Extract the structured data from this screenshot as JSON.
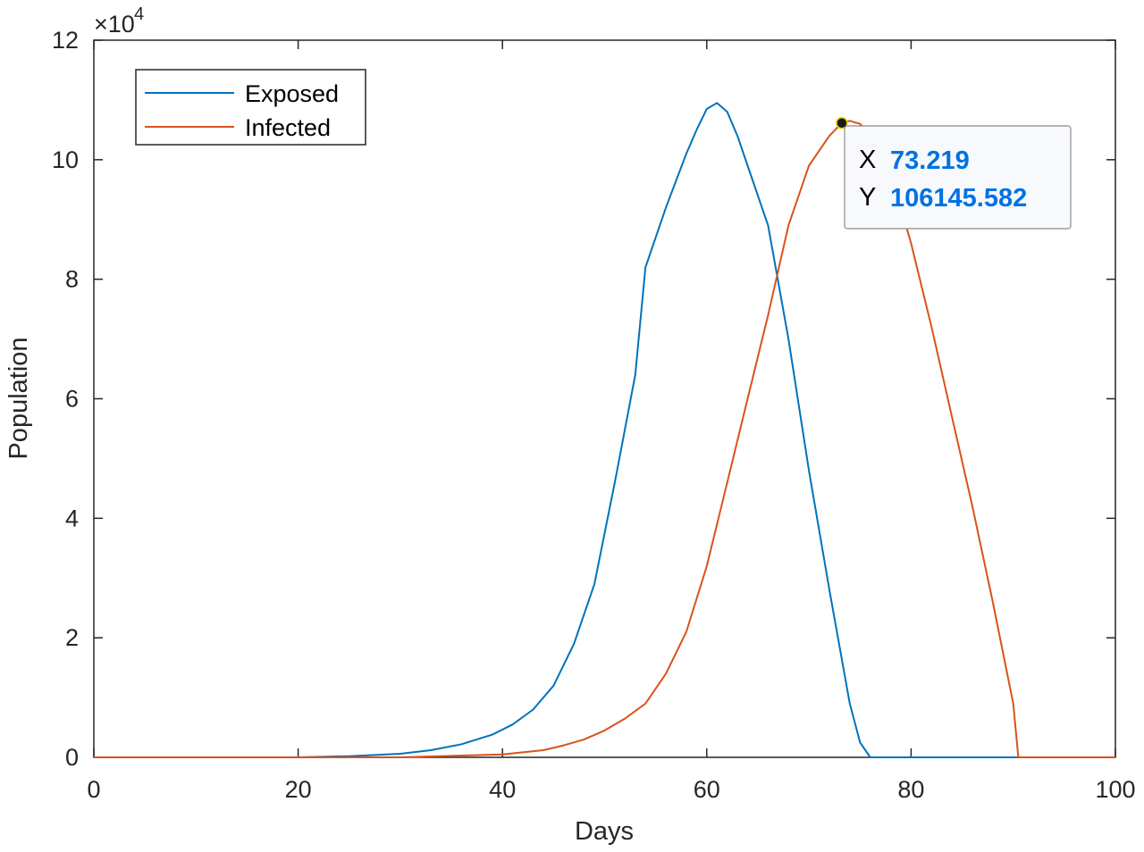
{
  "chart_data": {
    "type": "line",
    "xlabel": "Days",
    "ylabel": "Population",
    "y_exponent_label": "×10",
    "y_exponent_power": "4",
    "xlim": [
      0,
      100
    ],
    "ylim": [
      0,
      120000
    ],
    "x_ticks": [
      0,
      20,
      40,
      60,
      80,
      100
    ],
    "x_tick_labels": [
      "0",
      "20",
      "40",
      "60",
      "80",
      "100"
    ],
    "y_ticks": [
      0,
      20000,
      40000,
      60000,
      80000,
      100000,
      120000
    ],
    "y_tick_labels": [
      "0",
      "2",
      "4",
      "6",
      "8",
      "10",
      "12"
    ],
    "grid": false,
    "legend_position": "top-left",
    "series": [
      {
        "name": "Exposed",
        "color": "#0072BD",
        "x": [
          0,
          20,
          25,
          30,
          33,
          36,
          39,
          41,
          43,
          45,
          47,
          49,
          51,
          53,
          54,
          56,
          58,
          59,
          60,
          61,
          62,
          63,
          64,
          66,
          68,
          70,
          72,
          74,
          75,
          76,
          80,
          90,
          100
        ],
        "y": [
          0,
          0,
          200,
          600,
          1200,
          2200,
          3800,
          5500,
          8000,
          12000,
          19000,
          29000,
          46000,
          64000,
          82000,
          92000,
          101000,
          105000,
          108500,
          109500,
          108000,
          104000,
          99000,
          89000,
          70000,
          48000,
          28000,
          9000,
          2500,
          0,
          0,
          0,
          0
        ]
      },
      {
        "name": "Infected",
        "color": "#D95319",
        "x": [
          0,
          30,
          40,
          44,
          46,
          48,
          50,
          52,
          54,
          56,
          58,
          60,
          62,
          64,
          66,
          68,
          70,
          72,
          73.219,
          74,
          75,
          76,
          78,
          80,
          82,
          84,
          86,
          88,
          90,
          90.5,
          100
        ],
        "y": [
          0,
          0,
          500,
          1200,
          2000,
          3000,
          4500,
          6500,
          9000,
          14000,
          21000,
          32000,
          46000,
          60000,
          74000,
          89000,
          99000,
          104000,
          106145.582,
          106500,
          106000,
          104000,
          98000,
          86000,
          72000,
          57000,
          42000,
          26000,
          9000,
          0,
          0
        ]
      }
    ],
    "datatip": {
      "x_key": "X",
      "y_key": "Y",
      "x_value": "73.219",
      "y_value": "106145.582",
      "x": 73.219,
      "y": 106145.582,
      "value_color": "#0072E3"
    }
  }
}
